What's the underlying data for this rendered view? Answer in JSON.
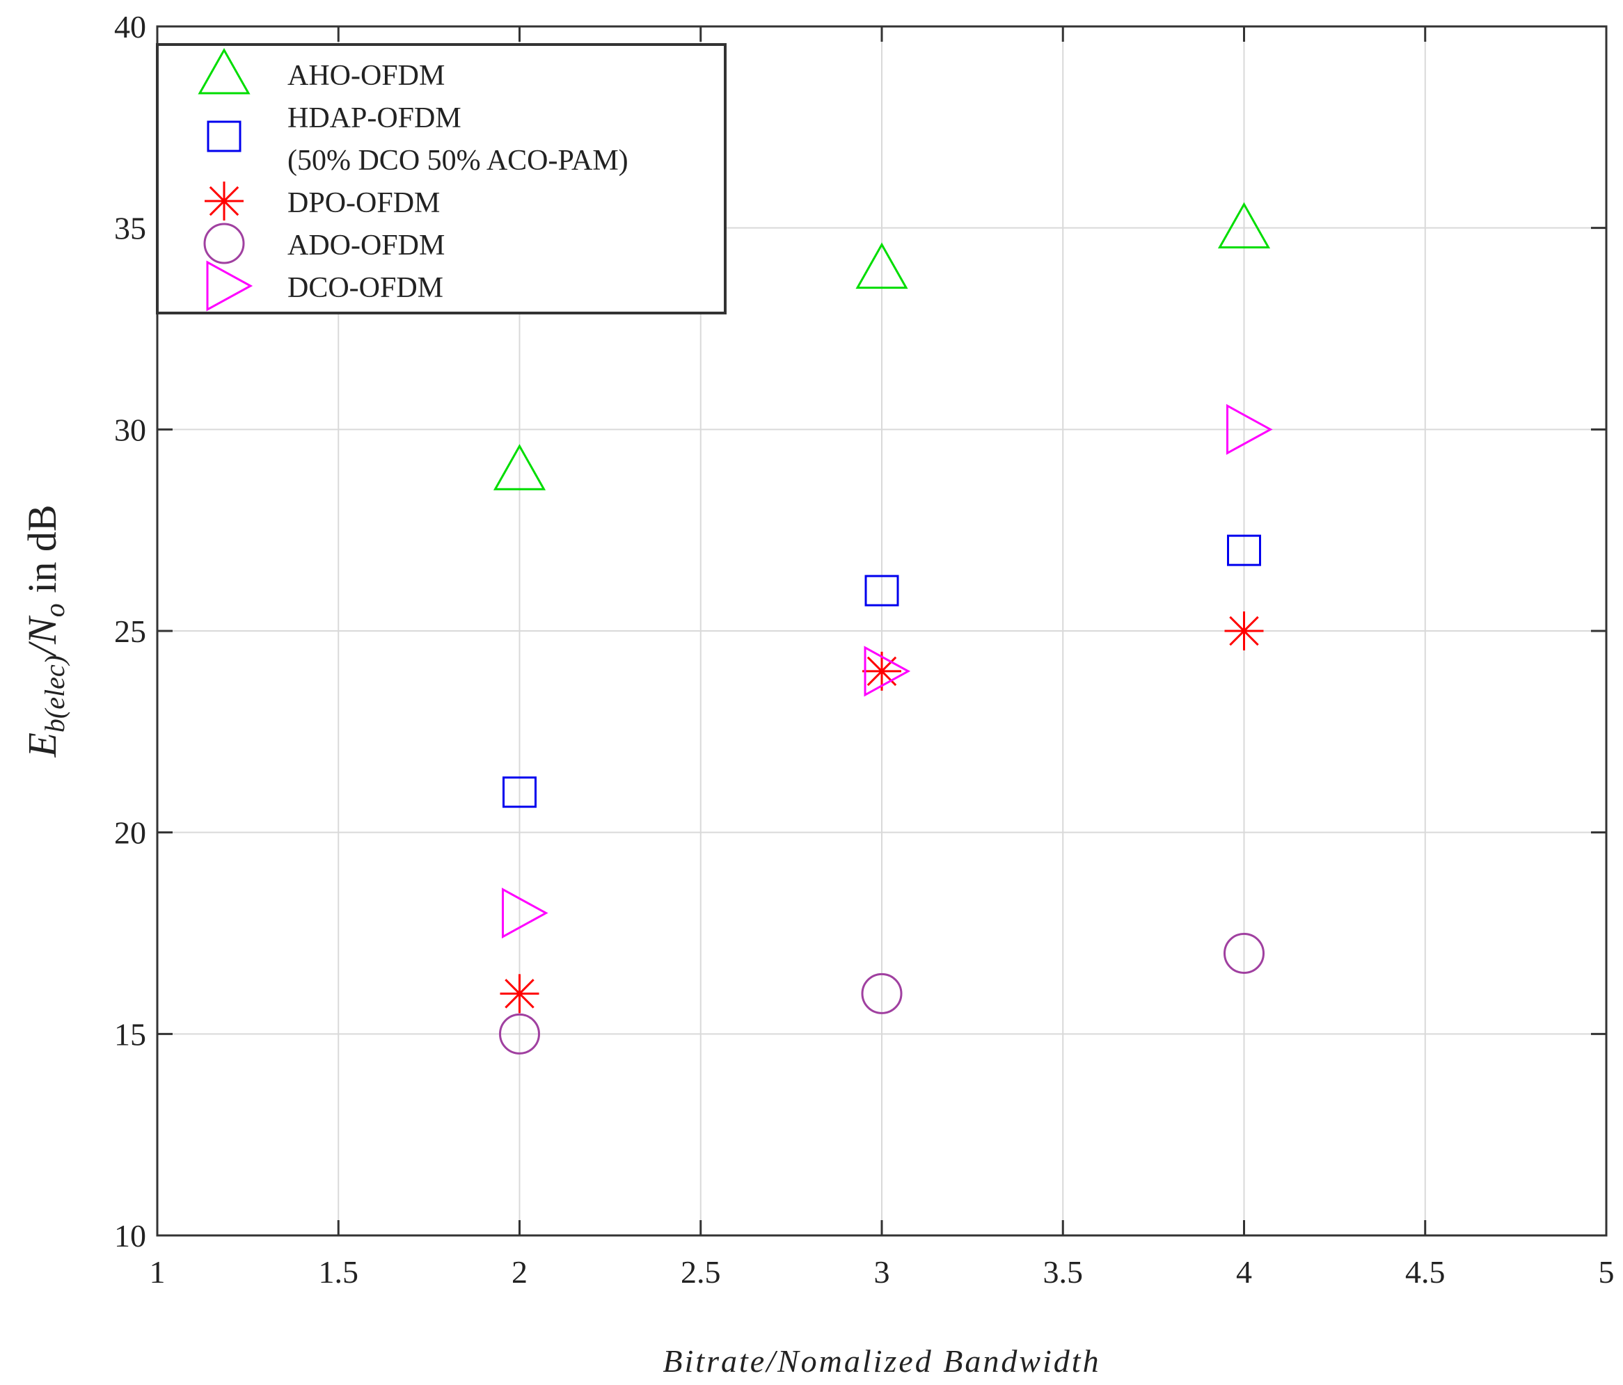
{
  "chart_data": {
    "type": "scatter",
    "title": "",
    "xlabel": "Bitrate/Nomalized Bandwidth",
    "ylabel": {
      "base": "E",
      "sub": "b(elec)",
      "mid": "/N",
      "sub2": "o",
      "suffix": " in dB"
    },
    "xlim": [
      1,
      5
    ],
    "ylim": [
      10,
      40
    ],
    "xticks": [
      1,
      1.5,
      2,
      2.5,
      3,
      3.5,
      4,
      4.5,
      5
    ],
    "xtick_labels": [
      "1",
      "1.5",
      "2",
      "2.5",
      "3",
      "3.5",
      "4",
      "4.5",
      "5"
    ],
    "yticks": [
      10,
      15,
      20,
      25,
      30,
      35,
      40
    ],
    "ytick_labels": [
      "10",
      "15",
      "20",
      "25",
      "30",
      "35",
      "40"
    ],
    "grid": true,
    "legend_position": "top-left",
    "series": [
      {
        "name": "AHO-OFDM",
        "marker": "triangle-up",
        "color": "#00dd00",
        "x": [
          2,
          3,
          4
        ],
        "y": [
          29,
          34,
          35
        ]
      },
      {
        "name": "HDAP-OFDM",
        "name_line2": "(50% DCO 50% ACO-PAM)",
        "marker": "square",
        "color": "#0000ee",
        "x": [
          2,
          3,
          4
        ],
        "y": [
          21,
          26,
          27
        ]
      },
      {
        "name": "DPO-OFDM",
        "marker": "asterisk",
        "color": "#ff0000",
        "x": [
          2,
          3,
          4
        ],
        "y": [
          16,
          24,
          25
        ]
      },
      {
        "name": "ADO-OFDM",
        "marker": "circle",
        "color": "#a040a0",
        "x": [
          2,
          3,
          4
        ],
        "y": [
          15,
          16,
          17
        ]
      },
      {
        "name": "DCO-OFDM",
        "marker": "triangle-right",
        "color": "#ff00ff",
        "x": [
          2,
          3,
          4
        ],
        "y": [
          18,
          24,
          30
        ]
      }
    ]
  }
}
